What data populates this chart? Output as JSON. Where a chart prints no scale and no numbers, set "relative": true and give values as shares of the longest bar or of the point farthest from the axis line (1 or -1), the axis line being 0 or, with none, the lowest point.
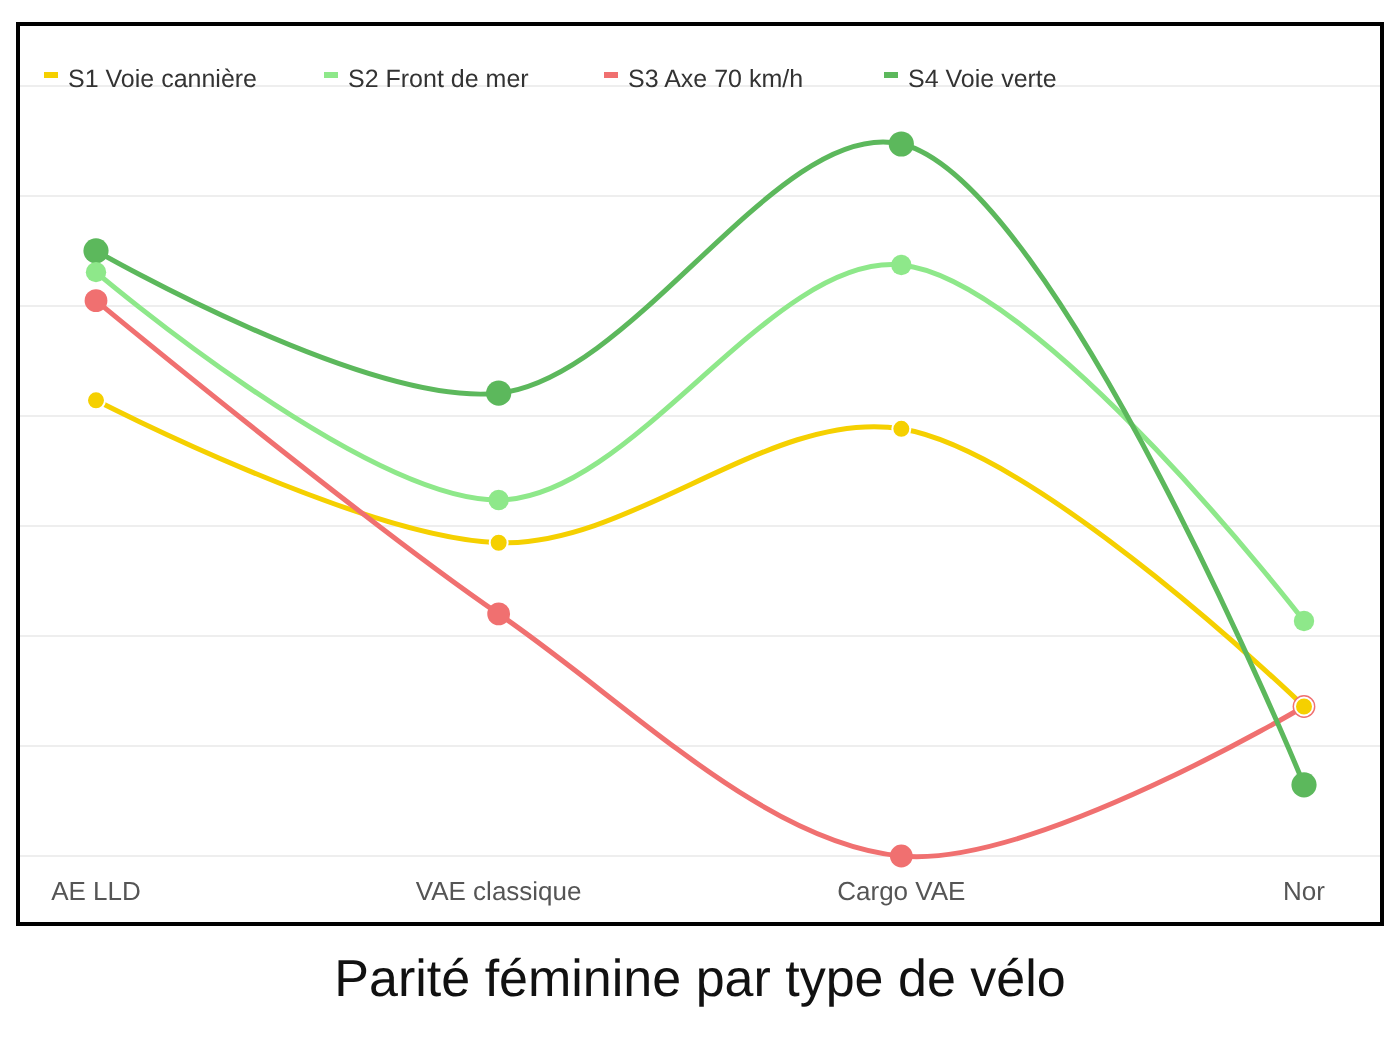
{
  "chart_data": {
    "type": "line",
    "title": "Parité féminine par type de vélo",
    "categories": [
      "AE LLD",
      "VAE classique",
      "Cargo VAE",
      "Nor"
    ],
    "relative": true,
    "grid": true,
    "legend": "top left",
    "marker": "circle",
    "line_style": "solid",
    "series": [
      {
        "name": "S1 Voie cannière",
        "color": "#f5d000",
        "values": [
          0.64,
          0.44,
          0.6,
          0.21
        ]
      },
      {
        "name": "S2 Front de mer",
        "color": "#8ee88a",
        "values": [
          0.82,
          0.5,
          0.83,
          0.33
        ]
      },
      {
        "name": "S3 Axe 70 km/h",
        "color": "#f07070",
        "values": [
          0.78,
          0.34,
          0,
          0.21
        ]
      },
      {
        "name": "S4 Voie verte",
        "color": "#5cb85c",
        "values": [
          0.85,
          0.65,
          1,
          0.1
        ]
      }
    ]
  }
}
